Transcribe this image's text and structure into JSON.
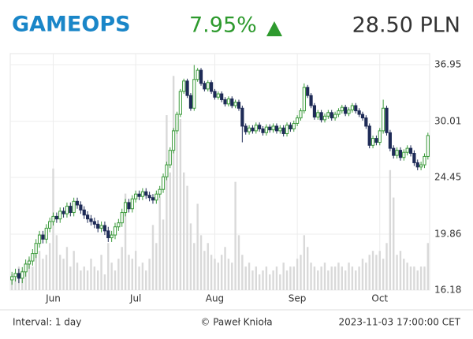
{
  "header": {
    "symbol": "GAMEOPS",
    "change": "7.95%",
    "price": "28.50 PLN"
  },
  "footer": {
    "interval": "Interval: 1 day",
    "author": "© Paweł Knioła",
    "timestamp": "2023-11-03 17:00:00 CET"
  },
  "chart_data": {
    "type": "candlestick",
    "log_scale": true,
    "grid": true,
    "up_color": "#3a9a3a",
    "down_color": "#1e2b57",
    "volume_color": "#d9d9d9",
    "ylim": [
      16.18,
      36.95
    ],
    "yticks": [
      16.18,
      19.86,
      24.45,
      30.01,
      36.95
    ],
    "categories": [
      null,
      null,
      null,
      null,
      null,
      null,
      null,
      null,
      null,
      null,
      null,
      null,
      "Jun",
      null,
      null,
      null,
      null,
      null,
      null,
      null,
      null,
      null,
      null,
      null,
      null,
      null,
      null,
      null,
      null,
      null,
      null,
      null,
      null,
      null,
      null,
      null,
      "Jul",
      null,
      null,
      null,
      null,
      null,
      null,
      null,
      null,
      null,
      null,
      null,
      null,
      null,
      null,
      null,
      null,
      null,
      null,
      null,
      null,
      null,
      null,
      "Aug",
      null,
      null,
      null,
      null,
      null,
      null,
      null,
      null,
      null,
      null,
      null,
      null,
      null,
      null,
      null,
      null,
      null,
      null,
      null,
      null,
      null,
      null,
      null,
      "Sep",
      null,
      null,
      null,
      null,
      null,
      null,
      null,
      null,
      null,
      null,
      null,
      null,
      null,
      null,
      null,
      null,
      null,
      null,
      null,
      null,
      null,
      null,
      null,
      "Oct",
      null,
      null,
      null,
      null,
      null,
      null,
      null,
      null,
      null,
      null,
      null,
      null,
      null,
      null
    ],
    "open": [
      16.8,
      17.0,
      17.2,
      16.9,
      17.3,
      17.8,
      18.0,
      18.5,
      19.2,
      19.8,
      19.5,
      20.3,
      20.8,
      21.2,
      21.0,
      21.6,
      21.4,
      22.0,
      21.5,
      22.4,
      22.1,
      21.7,
      21.3,
      21.0,
      20.8,
      20.6,
      20.3,
      20.5,
      20.1,
      19.6,
      19.8,
      20.4,
      20.7,
      21.5,
      22.3,
      21.8,
      22.6,
      23.0,
      22.8,
      23.2,
      22.9,
      22.7,
      22.5,
      23.0,
      23.4,
      24.5,
      25.6,
      27.0,
      29.0,
      30.8,
      33.5,
      34.8,
      33.0,
      31.5,
      35.0,
      36.2,
      34.5,
      33.8,
      34.6,
      33.5,
      32.8,
      33.2,
      32.5,
      32.0,
      32.6,
      31.8,
      32.2,
      31.5,
      29.5,
      28.9,
      29.3,
      29.0,
      29.6,
      29.2,
      28.8,
      29.4,
      29.1,
      29.5,
      29.0,
      29.3,
      28.7,
      29.6,
      29.2,
      29.8,
      30.4,
      31.2,
      34.0,
      33.0,
      31.8,
      30.5,
      31.0,
      30.2,
      30.6,
      31.0,
      30.4,
      30.8,
      31.2,
      31.6,
      30.9,
      31.3,
      31.8,
      31.2,
      30.8,
      30.4,
      29.5,
      27.5,
      28.2,
      27.8,
      29.0,
      31.5,
      28.8,
      27.2,
      26.5,
      27.0,
      26.3,
      26.8,
      27.2,
      26.7,
      25.8,
      25.4,
      25.6,
      26.4
    ],
    "high": [
      17.3,
      17.5,
      17.5,
      17.6,
      18.1,
      18.3,
      18.8,
      19.5,
      20.1,
      20.1,
      20.6,
      21.1,
      21.5,
      21.5,
      21.9,
      21.9,
      22.3,
      22.3,
      22.7,
      22.7,
      22.4,
      22.0,
      21.6,
      21.3,
      21.1,
      20.9,
      20.8,
      20.8,
      20.4,
      20.1,
      20.7,
      21.0,
      21.8,
      22.6,
      22.6,
      22.9,
      23.3,
      23.3,
      23.5,
      23.5,
      23.2,
      23.0,
      23.3,
      23.7,
      24.8,
      25.9,
      27.3,
      29.3,
      31.1,
      33.8,
      35.1,
      35.1,
      33.3,
      36.9,
      36.5,
      36.5,
      34.8,
      34.9,
      34.9,
      33.8,
      33.5,
      33.5,
      32.8,
      32.9,
      32.9,
      32.5,
      32.5,
      31.8,
      29.8,
      29.6,
      29.6,
      29.9,
      29.9,
      29.5,
      29.7,
      29.7,
      29.8,
      29.8,
      29.6,
      29.6,
      29.9,
      29.9,
      30.1,
      30.7,
      31.5,
      34.5,
      34.3,
      33.3,
      32.1,
      31.3,
      31.3,
      30.9,
      31.3,
      31.3,
      31.1,
      31.5,
      31.9,
      31.9,
      31.6,
      32.1,
      32.1,
      31.5,
      31.1,
      30.7,
      29.8,
      28.5,
      28.5,
      29.3,
      32.5,
      31.8,
      29.1,
      27.5,
      27.3,
      27.3,
      27.1,
      27.5,
      27.5,
      27.0,
      26.1,
      25.9,
      26.7,
      28.8
    ],
    "low": [
      16.5,
      16.7,
      16.6,
      16.6,
      17.0,
      17.5,
      17.7,
      18.2,
      18.9,
      19.2,
      19.2,
      20.0,
      20.5,
      20.7,
      20.7,
      21.1,
      21.1,
      21.2,
      21.2,
      21.8,
      21.4,
      21.0,
      20.7,
      20.5,
      20.3,
      20.0,
      20.0,
      19.8,
      19.3,
      19.3,
      19.5,
      20.1,
      20.4,
      21.2,
      21.5,
      21.5,
      22.3,
      22.5,
      22.5,
      22.6,
      22.4,
      22.2,
      22.2,
      22.7,
      23.1,
      24.2,
      25.3,
      26.7,
      28.7,
      30.5,
      33.2,
      32.7,
      31.2,
      31.2,
      34.7,
      34.2,
      33.5,
      33.5,
      33.2,
      32.5,
      32.5,
      32.2,
      31.7,
      31.7,
      31.5,
      31.5,
      31.2,
      27.8,
      28.6,
      28.6,
      28.7,
      28.7,
      28.9,
      28.5,
      28.5,
      28.8,
      28.8,
      28.7,
      28.7,
      28.4,
      28.4,
      28.9,
      28.9,
      29.5,
      30.1,
      30.9,
      32.7,
      31.5,
      30.2,
      30.2,
      29.9,
      29.9,
      30.3,
      30.1,
      30.1,
      30.5,
      30.9,
      30.6,
      30.6,
      31.0,
      30.9,
      30.5,
      30.1,
      29.2,
      27.2,
      27.2,
      27.5,
      27.5,
      28.7,
      28.5,
      26.9,
      26.2,
      26.2,
      26.0,
      26.0,
      26.5,
      26.4,
      25.5,
      25.1,
      25.1,
      25.3,
      26.1
    ],
    "close": [
      17.0,
      17.2,
      16.9,
      17.3,
      17.8,
      18.0,
      18.5,
      19.2,
      19.8,
      19.5,
      20.3,
      20.8,
      21.2,
      21.0,
      21.6,
      21.4,
      22.0,
      21.5,
      22.4,
      22.1,
      21.7,
      21.3,
      21.0,
      20.8,
      20.6,
      20.3,
      20.5,
      20.1,
      19.6,
      19.8,
      20.4,
      20.7,
      21.5,
      22.3,
      21.8,
      22.6,
      23.0,
      22.8,
      23.2,
      22.9,
      22.7,
      22.5,
      23.0,
      23.4,
      24.5,
      25.6,
      27.0,
      29.0,
      30.8,
      33.5,
      34.8,
      33.0,
      31.5,
      35.0,
      36.2,
      34.5,
      33.8,
      34.6,
      33.5,
      32.8,
      33.2,
      32.5,
      32.0,
      32.6,
      31.8,
      32.2,
      31.5,
      29.5,
      28.9,
      29.3,
      29.0,
      29.6,
      29.2,
      28.8,
      29.4,
      29.1,
      29.5,
      29.0,
      29.3,
      28.7,
      29.6,
      29.2,
      29.8,
      30.4,
      31.2,
      34.0,
      33.0,
      31.8,
      30.5,
      31.0,
      30.2,
      30.6,
      31.0,
      30.4,
      30.8,
      31.2,
      31.6,
      30.9,
      31.3,
      31.8,
      31.2,
      30.8,
      30.4,
      29.5,
      27.5,
      28.2,
      27.8,
      29.0,
      31.5,
      28.8,
      27.2,
      26.5,
      27.0,
      26.3,
      26.8,
      27.2,
      26.7,
      25.8,
      25.4,
      25.6,
      26.4,
      28.5
    ],
    "volume": [
      20,
      15,
      30,
      25,
      35,
      40,
      30,
      45,
      50,
      40,
      45,
      60,
      155,
      70,
      45,
      40,
      55,
      30,
      50,
      35,
      25,
      30,
      25,
      40,
      30,
      25,
      45,
      20,
      60,
      35,
      25,
      40,
      55,
      123,
      45,
      40,
      50,
      30,
      35,
      25,
      40,
      83,
      60,
      118,
      90,
      223,
      150,
      273,
      200,
      218,
      150,
      133,
      85,
      60,
      110,
      70,
      50,
      60,
      45,
      40,
      35,
      45,
      55,
      40,
      35,
      138,
      70,
      45,
      30,
      35,
      25,
      30,
      20,
      25,
      30,
      20,
      25,
      30,
      20,
      35,
      25,
      30,
      30,
      40,
      45,
      70,
      55,
      35,
      30,
      25,
      30,
      35,
      25,
      30,
      30,
      35,
      30,
      25,
      35,
      30,
      25,
      30,
      40,
      35,
      45,
      50,
      45,
      50,
      40,
      60,
      153,
      118,
      45,
      50,
      40,
      35,
      30,
      30,
      25,
      30,
      30,
      60
    ]
  }
}
